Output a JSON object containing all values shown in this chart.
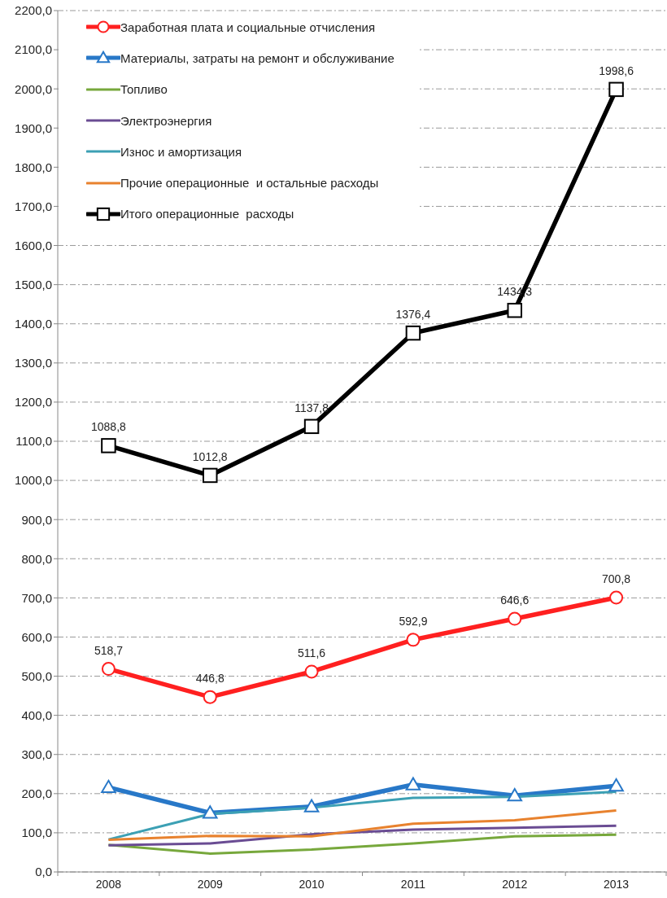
{
  "chart_data": {
    "type": "line",
    "categories": [
      "2008",
      "2009",
      "2010",
      "2011",
      "2012",
      "2013"
    ],
    "ylim": [
      0,
      2200
    ],
    "yticks": [
      {
        "value": 0,
        "label": "0,0"
      },
      {
        "value": 100,
        "label": "100,0"
      },
      {
        "value": 200,
        "label": "200,0"
      },
      {
        "value": 300,
        "label": "300,0"
      },
      {
        "value": 400,
        "label": "400,0"
      },
      {
        "value": 500,
        "label": "500,0"
      },
      {
        "value": 600,
        "label": "600,0"
      },
      {
        "value": 700,
        "label": "700,0"
      },
      {
        "value": 800,
        "label": "800,0"
      },
      {
        "value": 900,
        "label": "900,0"
      },
      {
        "value": 1000,
        "label": "1000,0"
      },
      {
        "value": 1100,
        "label": "1100,0"
      },
      {
        "value": 1200,
        "label": "1200,0"
      },
      {
        "value": 1300,
        "label": "1300,0"
      },
      {
        "value": 1400,
        "label": "1400,0"
      },
      {
        "value": 1500,
        "label": "1500,0"
      },
      {
        "value": 1600,
        "label": "1600,0"
      },
      {
        "value": 1700,
        "label": "1700,0"
      },
      {
        "value": 1800,
        "label": "1800,0"
      },
      {
        "value": 1900,
        "label": "1900,0"
      },
      {
        "value": 2000,
        "label": "2000,0"
      },
      {
        "value": 2100,
        "label": "2100,0"
      },
      {
        "value": 2200,
        "label": "2200,0"
      }
    ],
    "grid": "y",
    "legend": "top left",
    "series": [
      {
        "name": "Заработная плата и социальные отчисления",
        "color": "#ff2020",
        "marker": "circle",
        "values": [
          518.7,
          446.8,
          511.6,
          592.9,
          646.6,
          700.8
        ],
        "value_labels": [
          "518,7",
          "446,8",
          "511,6",
          "592,9",
          "646,6",
          "700,8"
        ]
      },
      {
        "name": "Материалы, затраты на ремонт и обслуживание",
        "color": "#2878c8",
        "marker": "triangle",
        "values": [
          216,
          151,
          167,
          223,
          195,
          220
        ]
      },
      {
        "name": "Топливо",
        "color": "#77a83c",
        "values": [
          69,
          47,
          57,
          73,
          91,
          95
        ]
      },
      {
        "name": "Электроэнергия",
        "color": "#6a4c93",
        "values": [
          68,
          73,
          96,
          108,
          113,
          118
        ]
      },
      {
        "name": "Износ и амортизация",
        "color": "#3ca0b4",
        "values": [
          83,
          148,
          164,
          189,
          192,
          205
        ]
      },
      {
        "name": "Прочие операционные  и остальные расходы",
        "color": "#e8822e",
        "values": [
          82,
          92,
          91,
          123,
          132,
          157
        ]
      },
      {
        "name": "Итого операционные  расходы",
        "color": "#000000",
        "marker": "square",
        "values": [
          1088.8,
          1012.8,
          1137.8,
          1376.4,
          1434.3,
          1998.6
        ],
        "value_labels": [
          "1088,8",
          "1012,8",
          "1137,8",
          "1376,4",
          "1434,3",
          "1998,6"
        ]
      }
    ]
  }
}
